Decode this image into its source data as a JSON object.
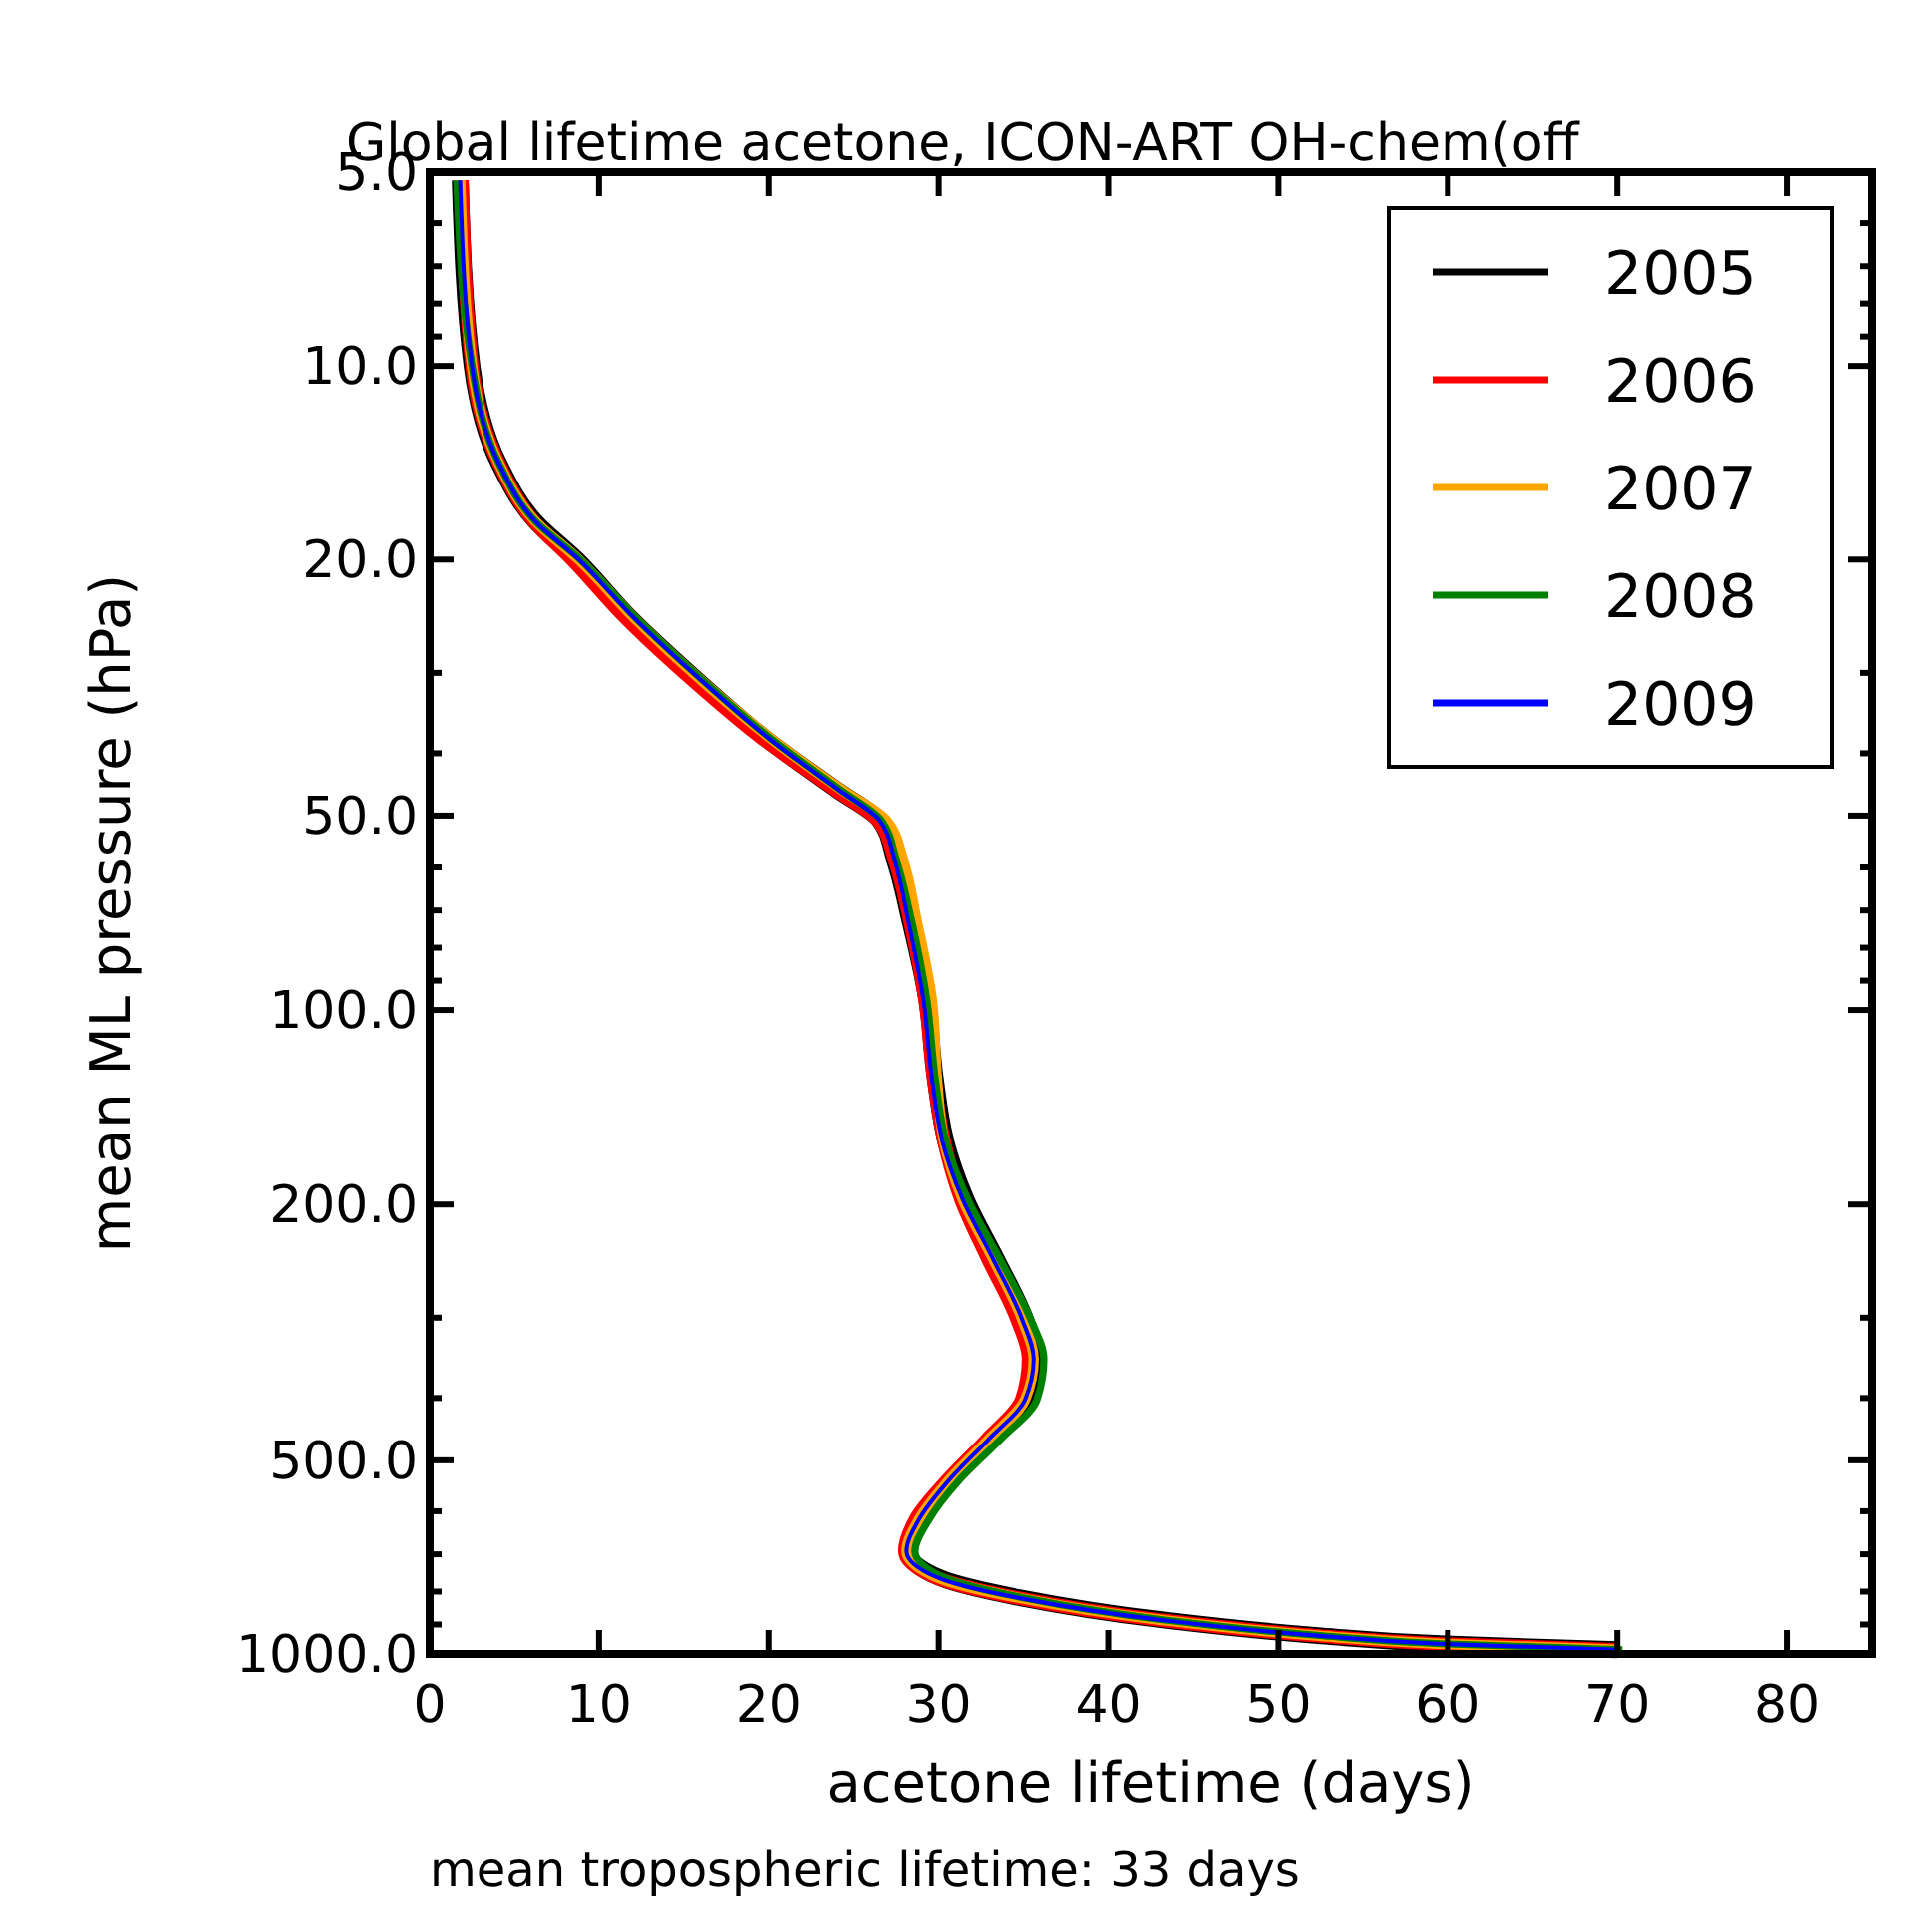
{
  "chart_data": {
    "type": "line",
    "title": "Global lifetime acetone, ICON-ART OH-chem(off",
    "xlabel": "acetone lifetime (days)",
    "ylabel": "mean ML pressure (hPa)",
    "annotations": [
      "mean tropospheric lifetime: 33 days"
    ],
    "log": "y",
    "xlim": [
      0,
      85
    ],
    "xticks": [
      0,
      10,
      20,
      30,
      40,
      50,
      60,
      70,
      80
    ],
    "ylim": [
      1000,
      5
    ],
    "yticks": [
      {
        "value": 5,
        "label": "5.0"
      },
      {
        "value": 6,
        "label": null
      },
      {
        "value": 7,
        "label": null
      },
      {
        "value": 8,
        "label": null
      },
      {
        "value": 9,
        "label": null
      },
      {
        "value": 10,
        "label": "10.0"
      },
      {
        "value": 20,
        "label": "20.0"
      },
      {
        "value": 30,
        "label": null
      },
      {
        "value": 40,
        "label": null
      },
      {
        "value": 50,
        "label": "50.0"
      },
      {
        "value": 60,
        "label": null
      },
      {
        "value": 70,
        "label": null
      },
      {
        "value": 80,
        "label": null
      },
      {
        "value": 90,
        "label": null
      },
      {
        "value": 100,
        "label": "100.0"
      },
      {
        "value": 200,
        "label": "200.0"
      },
      {
        "value": 300,
        "label": null
      },
      {
        "value": 400,
        "label": null
      },
      {
        "value": 500,
        "label": "500.0"
      },
      {
        "value": 600,
        "label": null
      },
      {
        "value": 700,
        "label": null
      },
      {
        "value": 800,
        "label": null
      },
      {
        "value": 900,
        "label": null
      },
      {
        "value": 1000,
        "label": "1000.0"
      }
    ],
    "grid": false,
    "legend": "top right",
    "marker": "none",
    "line_style": "solid",
    "series": [
      {
        "name": "2005",
        "color": "#000000",
        "x": [
          1.8,
          2.5,
          4.1,
          6.2,
          8.7,
          11.9,
          15.7,
          19.8,
          24.0,
          26.5,
          27.4,
          28.3,
          29.3,
          29.8,
          30.4,
          31.6,
          33.4,
          35.1,
          35.8,
          35.3,
          33.1,
          30.8,
          28.9,
          28.2,
          30.1,
          34.8,
          43.0,
          52.5,
          59.5,
          70
        ],
        "values": [
          5.15,
          10,
          14.2,
          17.4,
          20,
          24.7,
          30.6,
          37.9,
          45.6,
          50.8,
          58.5,
          72.6,
          96.5,
          128,
          159,
          196,
          243,
          301,
          348,
          402,
          465,
          537,
          620,
          692,
          762,
          818,
          884,
          937,
          964,
          985
        ]
      },
      {
        "name": "2006",
        "color": "#ff0000",
        "x": [
          1.9,
          2.5,
          4.1,
          6.1,
          8.4,
          11.6,
          15.4,
          19.6,
          23.9,
          26.4,
          27.4,
          28.3,
          29.2,
          29.7,
          30.3,
          31.3,
          32.9,
          34.6,
          35.3,
          34.9,
          32.8,
          30.5,
          28.6,
          28.0,
          29.9,
          34.6,
          42.8,
          52.3,
          59.3,
          70
        ],
        "values": [
          5.15,
          10,
          14.2,
          17.4,
          20,
          24.7,
          30.6,
          37.9,
          45.6,
          50.8,
          58.5,
          72.6,
          96.5,
          128,
          159,
          196,
          243,
          301,
          348,
          402,
          465,
          537,
          620,
          692,
          762,
          818,
          884,
          937,
          964,
          985
        ]
      },
      {
        "name": "2007",
        "color": "#ffa500",
        "x": [
          1.8,
          2.5,
          4.1,
          6.2,
          8.8,
          12.1,
          15.9,
          20.1,
          24.3,
          26.9,
          27.9,
          28.7,
          29.6,
          29.9,
          30.3,
          31.4,
          33.2,
          34.9,
          35.6,
          35.1,
          32.9,
          30.6,
          28.8,
          28.1,
          30,
          34.7,
          42.9,
          52.4,
          59.4,
          70
        ],
        "values": [
          5.15,
          10,
          14.2,
          17.4,
          20,
          24.7,
          30.6,
          37.9,
          45.6,
          50.8,
          58.5,
          72.6,
          96.5,
          128,
          159,
          196,
          243,
          301,
          348,
          402,
          465,
          537,
          620,
          692,
          762,
          818,
          884,
          937,
          964,
          985
        ]
      },
      {
        "name": "2008",
        "color": "#008000",
        "x": [
          1.6,
          2.5,
          4.1,
          6.2,
          8.9,
          12.2,
          16.0,
          20.1,
          24.2,
          26.6,
          27.5,
          28.4,
          29.3,
          29.8,
          30.4,
          31.7,
          33.6,
          35.4,
          36.2,
          35.8,
          33.6,
          31.2,
          29.4,
          28.6,
          30.4,
          35.0,
          43.1,
          52.6,
          59.6,
          70.3
        ],
        "values": [
          5.15,
          10,
          14.2,
          17.4,
          20,
          24.7,
          30.6,
          37.9,
          45.6,
          50.8,
          58.5,
          72.6,
          96.5,
          128,
          159,
          196,
          243,
          301,
          348,
          402,
          465,
          537,
          620,
          692,
          762,
          818,
          884,
          937,
          964,
          985
        ]
      },
      {
        "name": "2009",
        "color": "#0000ff",
        "x": [
          1.8,
          2.5,
          4.1,
          6.2,
          8.8,
          12.1,
          15.9,
          20,
          24.1,
          26.5,
          27.4,
          28.2,
          29.1,
          29.6,
          30.2,
          31.4,
          33.2,
          34.9,
          35.6,
          35.1,
          32.9,
          30.6,
          28.8,
          28.1,
          30,
          34.7,
          42.9,
          52.4,
          59.4,
          70
        ],
        "values": [
          5.15,
          10,
          14.2,
          17.4,
          20,
          24.7,
          30.6,
          37.9,
          45.6,
          50.8,
          58.5,
          72.6,
          96.5,
          128,
          159,
          196,
          243,
          301,
          348,
          402,
          465,
          537,
          620,
          692,
          762,
          818,
          884,
          937,
          964,
          985
        ]
      }
    ]
  }
}
